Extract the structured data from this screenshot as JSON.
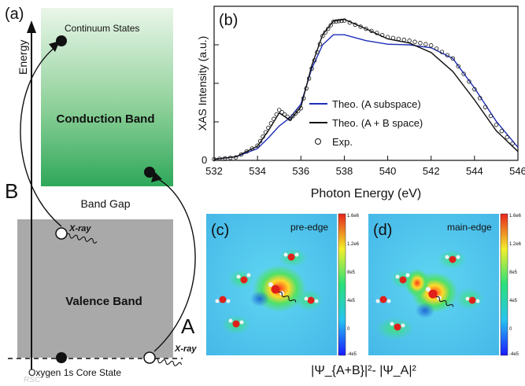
{
  "panel_labels": {
    "a": "(a)",
    "b": "(b)",
    "c": "(c)",
    "d": "(d)"
  },
  "schematic": {
    "energy_axis_label": "Energy",
    "continuum_states": "Continuum States",
    "conduction_band": "Conduction Band",
    "band_gap": "Band Gap",
    "valence_band": "Valence Band",
    "core_state": "Oxygen 1s Core State",
    "xray_label": "X-ray",
    "xray_label_2": "X-ray",
    "transition_a": "A",
    "transition_b": "B",
    "colors": {
      "conduction_top": "#e6f4e6",
      "conduction_bottom": "#2fa85a",
      "valence": "#a9a9a9"
    }
  },
  "maps": {
    "pre_edge_title": "pre-edge",
    "main_edge_title": "main-edge",
    "colorbar_ticks": [
      "1.6e6",
      "1.2e6",
      "8e5",
      "4e5",
      "0",
      "-4e5"
    ],
    "formula": "|Ψ_{A+B}|²- |Ψ_A|²"
  },
  "watermark": "RSC",
  "chart_data": {
    "type": "line",
    "xlabel": "Photon Energy (eV)",
    "ylabel": "XAS Intensity (a.u.)",
    "xlim": [
      532,
      546
    ],
    "ylim": [
      0,
      2.6
    ],
    "xticks": [
      532,
      534,
      536,
      538,
      540,
      542,
      544,
      546
    ],
    "ytick_label": "0",
    "legend_position": "center-right",
    "series": [
      {
        "name": "Theo. (A subspace)",
        "style": "line",
        "color": "#1f2fb8",
        "x": [
          532,
          533,
          534,
          534.5,
          535,
          535.5,
          536,
          536.5,
          537,
          537.5,
          538,
          539,
          540,
          541,
          542,
          543,
          544,
          545,
          546
        ],
        "y": [
          0.02,
          0.06,
          0.2,
          0.38,
          0.58,
          0.72,
          0.95,
          1.55,
          1.95,
          2.12,
          2.12,
          2.02,
          1.96,
          1.95,
          1.9,
          1.72,
          1.22,
          0.66,
          0.22
        ]
      },
      {
        "name": "Theo. (A + B space)",
        "style": "line",
        "color": "#111111",
        "x": [
          532,
          533,
          534,
          534.5,
          535,
          535.5,
          536,
          536.5,
          537,
          537.5,
          538,
          539,
          540,
          541,
          542,
          543,
          544,
          545,
          546
        ],
        "y": [
          0.02,
          0.06,
          0.24,
          0.5,
          0.8,
          0.68,
          0.9,
          1.6,
          2.12,
          2.35,
          2.38,
          2.22,
          2.05,
          1.98,
          1.82,
          1.5,
          1.02,
          0.5,
          0.15
        ]
      },
      {
        "name": "Exp.",
        "style": "markers",
        "color": "#111111",
        "x": [
          532,
          533,
          534,
          534.5,
          535,
          535.5,
          536,
          536.5,
          537,
          537.5,
          538,
          539,
          540,
          541,
          542,
          543,
          544,
          545,
          546
        ],
        "y": [
          0.02,
          0.05,
          0.25,
          0.55,
          0.85,
          0.7,
          0.88,
          1.55,
          2.1,
          2.34,
          2.36,
          2.22,
          2.08,
          2.02,
          1.94,
          1.72,
          1.2,
          0.6,
          0.18
        ]
      }
    ]
  }
}
